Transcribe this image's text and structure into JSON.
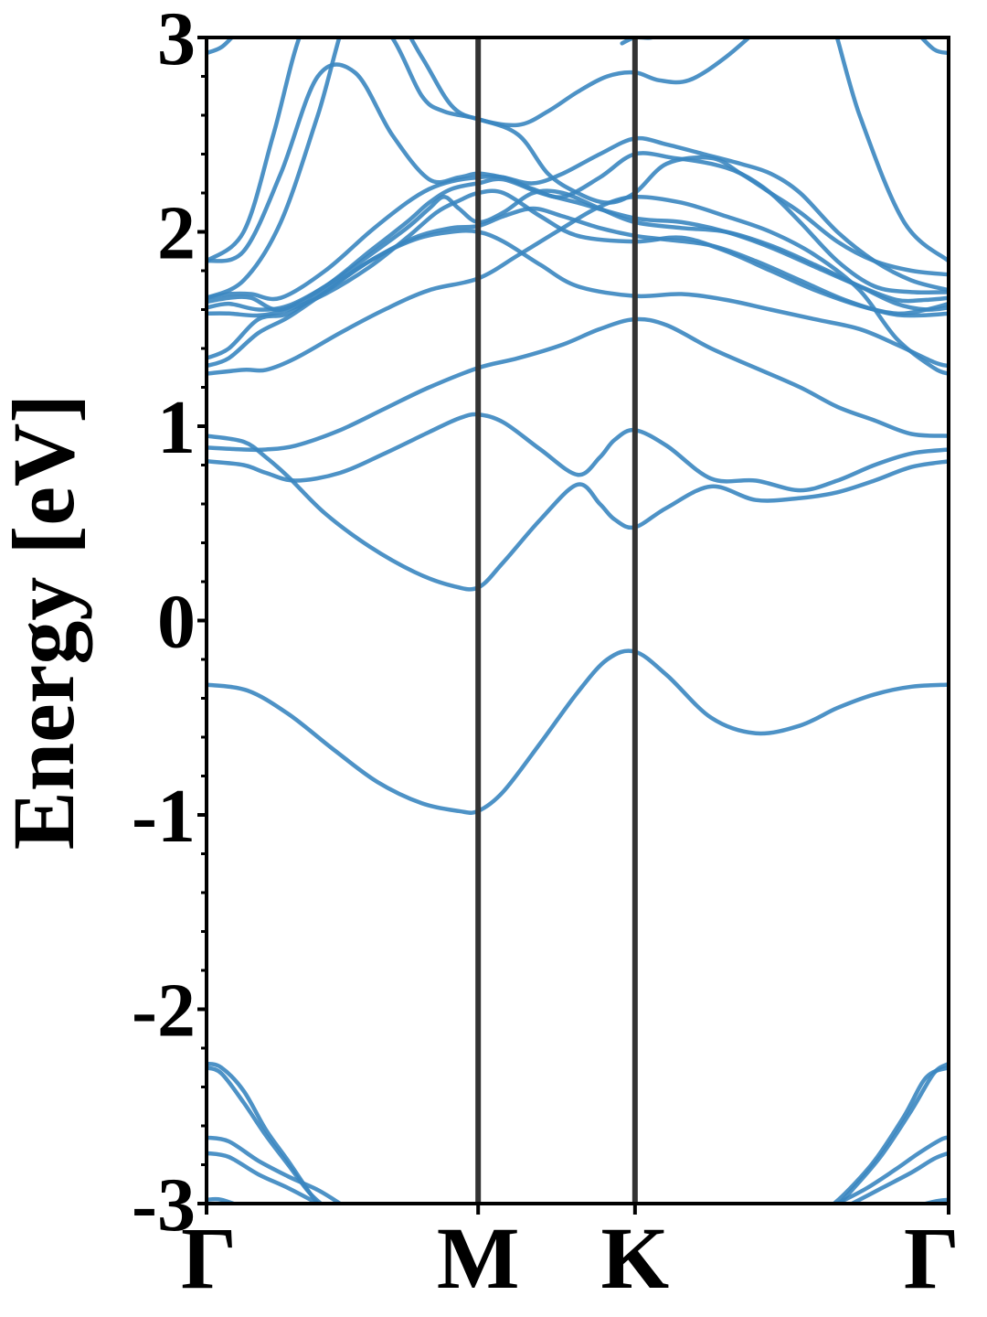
{
  "chart_data": {
    "type": "line",
    "title": "",
    "xlabel": "",
    "ylabel": "Energy [eV]",
    "ylim": [
      -3,
      3
    ],
    "y_ticks": [
      "3",
      "2",
      "1",
      "0",
      "-1",
      "-2",
      "-3"
    ],
    "y_tick_values": [
      3,
      2,
      1,
      0,
      -1,
      -2,
      -3
    ],
    "y_minor_step": 0.2,
    "k_path": [
      {
        "label": "Γ",
        "x": 0.0
      },
      {
        "label": "M",
        "x": 0.366
      },
      {
        "label": "K",
        "x": 0.5774
      },
      {
        "label": "Γ",
        "x": 1.0
      }
    ],
    "grid": false,
    "colors": {
      "band": "#3a86c0",
      "divider": "#333333",
      "axis": "#000000"
    },
    "series": [
      {
        "x": [
          0.0,
          0.055,
          0.11,
          0.17,
          0.23,
          0.29,
          0.34,
          0.366,
          0.4,
          0.45,
          0.5,
          0.54,
          0.577,
          0.62,
          0.68,
          0.74,
          0.8,
          0.85,
          0.9,
          0.95,
          1.0
        ],
        "y": [
          -0.33,
          -0.36,
          -0.48,
          -0.66,
          -0.83,
          -0.94,
          -0.98,
          -0.98,
          -0.88,
          -0.63,
          -0.37,
          -0.2,
          -0.16,
          -0.28,
          -0.5,
          -0.58,
          -0.54,
          -0.45,
          -0.38,
          -0.34,
          -0.33
        ]
      },
      {
        "x": [
          0.0,
          0.05,
          0.08,
          0.11,
          0.16,
          0.22,
          0.28,
          0.33,
          0.366,
          0.4,
          0.45,
          0.5,
          0.53,
          0.55,
          0.577,
          0.62,
          0.68,
          0.74,
          0.8,
          0.85,
          0.9,
          0.95,
          1.0
        ],
        "y": [
          0.95,
          0.92,
          0.84,
          0.74,
          0.55,
          0.38,
          0.25,
          0.18,
          0.17,
          0.3,
          0.52,
          0.7,
          0.6,
          0.52,
          0.48,
          0.58,
          0.69,
          0.62,
          0.63,
          0.66,
          0.72,
          0.79,
          0.82
        ]
      },
      {
        "x": [
          0.0,
          0.05,
          0.08,
          0.12,
          0.18,
          0.24,
          0.3,
          0.34,
          0.366,
          0.4,
          0.45,
          0.5,
          0.53,
          0.55,
          0.577,
          0.62,
          0.68,
          0.74,
          0.8,
          0.85,
          0.9,
          0.95,
          1.0
        ],
        "y": [
          0.82,
          0.8,
          0.76,
          0.72,
          0.76,
          0.86,
          0.97,
          1.04,
          1.06,
          1.02,
          0.88,
          0.75,
          0.84,
          0.93,
          0.98,
          0.9,
          0.73,
          0.72,
          0.67,
          0.72,
          0.8,
          0.86,
          0.88
        ]
      },
      {
        "x": [
          0.0,
          0.05,
          0.08,
          0.12,
          0.18,
          0.24,
          0.3,
          0.366,
          0.42,
          0.48,
          0.53,
          0.577,
          0.62,
          0.68,
          0.74,
          0.8,
          0.85,
          0.9,
          0.95,
          1.0
        ],
        "y": [
          0.89,
          0.88,
          0.88,
          0.9,
          0.98,
          1.09,
          1.2,
          1.3,
          1.35,
          1.42,
          1.5,
          1.55,
          1.52,
          1.4,
          1.3,
          1.2,
          1.1,
          1.03,
          0.96,
          0.95
        ]
      },
      {
        "x": [
          0.0,
          0.05,
          0.08,
          0.12,
          0.18,
          0.24,
          0.3,
          0.366,
          0.42,
          0.48,
          0.53,
          0.577,
          0.64,
          0.7,
          0.76,
          0.82,
          0.88,
          0.93,
          0.98,
          1.0
        ],
        "y": [
          1.27,
          1.29,
          1.29,
          1.35,
          1.48,
          1.6,
          1.7,
          1.76,
          1.88,
          2.02,
          2.13,
          2.18,
          2.15,
          2.08,
          2.0,
          1.88,
          1.7,
          1.45,
          1.3,
          1.27
        ]
      },
      {
        "x": [
          0.0,
          0.03,
          0.07,
          0.11,
          0.16,
          0.22,
          0.28,
          0.33,
          0.366,
          0.4,
          0.45,
          0.5,
          0.577,
          0.64,
          0.7,
          0.76,
          0.82,
          0.88,
          0.93,
          0.98,
          1.0
        ],
        "y": [
          1.31,
          1.35,
          1.48,
          1.56,
          1.69,
          1.85,
          1.96,
          2.0,
          2.0,
          1.95,
          1.83,
          1.72,
          1.67,
          1.68,
          1.65,
          1.6,
          1.55,
          1.5,
          1.42,
          1.33,
          1.31
        ]
      },
      {
        "x": [
          0.0,
          0.03,
          0.07,
          0.11,
          0.16,
          0.22,
          0.28,
          0.33,
          0.366,
          0.4,
          0.44,
          0.48,
          0.53,
          0.577,
          0.62,
          0.68,
          0.74,
          0.8,
          0.86,
          0.92,
          0.96,
          1.0
        ],
        "y": [
          1.35,
          1.4,
          1.55,
          1.58,
          1.7,
          1.85,
          1.97,
          2.02,
          2.03,
          2.08,
          2.12,
          2.08,
          2.02,
          1.98,
          1.96,
          1.93,
          1.85,
          1.75,
          1.65,
          1.58,
          1.57,
          1.58
        ]
      },
      {
        "x": [
          0.0,
          0.03,
          0.07,
          0.11,
          0.16,
          0.22,
          0.27,
          0.31,
          0.34,
          0.366,
          0.4,
          0.45,
          0.5,
          0.577,
          0.64,
          0.7,
          0.76,
          0.82,
          0.88,
          0.93,
          0.97,
          1.0
        ],
        "y": [
          1.58,
          1.58,
          1.57,
          1.6,
          1.68,
          1.82,
          1.97,
          2.1,
          2.16,
          2.2,
          2.2,
          2.08,
          1.98,
          1.95,
          1.97,
          1.9,
          1.8,
          1.7,
          1.62,
          1.58,
          1.6,
          1.63
        ]
      },
      {
        "x": [
          0.0,
          0.03,
          0.07,
          0.11,
          0.16,
          0.22,
          0.27,
          0.3,
          0.32,
          0.34,
          0.366,
          0.4,
          0.44,
          0.48,
          0.53,
          0.577,
          0.64,
          0.7,
          0.76,
          0.82,
          0.88,
          0.93,
          0.97,
          1.0
        ],
        "y": [
          1.61,
          1.63,
          1.6,
          1.62,
          1.72,
          1.88,
          2.02,
          2.12,
          2.18,
          2.12,
          2.05,
          2.1,
          2.2,
          2.2,
          2.12,
          2.05,
          2.02,
          2.0,
          1.93,
          1.83,
          1.72,
          1.63,
          1.6,
          1.61
        ]
      },
      {
        "x": [
          0.0,
          0.03,
          0.06,
          0.1,
          0.16,
          0.22,
          0.27,
          0.3,
          0.33,
          0.366,
          0.4,
          0.45,
          0.5,
          0.577,
          0.64,
          0.7,
          0.76,
          0.82,
          0.88,
          0.93,
          0.97,
          1.0
        ],
        "y": [
          1.64,
          1.66,
          1.66,
          1.6,
          1.72,
          1.9,
          2.05,
          2.15,
          2.22,
          2.25,
          2.27,
          2.2,
          2.15,
          2.07,
          2.05,
          2.0,
          1.92,
          1.82,
          1.72,
          1.65,
          1.65,
          1.66
        ]
      },
      {
        "x": [
          0.0,
          0.03,
          0.06,
          0.1,
          0.16,
          0.22,
          0.27,
          0.3,
          0.33,
          0.366,
          0.4,
          0.44,
          0.48,
          0.53,
          0.577,
          0.63,
          0.68,
          0.72,
          0.76,
          0.8,
          0.85,
          0.9,
          0.95,
          1.0
        ],
        "y": [
          1.66,
          1.68,
          1.68,
          1.66,
          1.8,
          2.0,
          2.15,
          2.22,
          2.26,
          2.28,
          2.28,
          2.22,
          2.18,
          2.28,
          2.4,
          2.38,
          2.35,
          2.3,
          2.2,
          2.05,
          1.85,
          1.72,
          1.69,
          1.69
        ]
      },
      {
        "x": [
          0.0,
          0.05,
          0.1,
          0.15,
          0.2,
          0.25,
          0.3,
          0.34,
          0.366,
          0.4,
          0.44,
          0.48,
          0.53,
          0.577,
          0.62,
          0.67,
          0.72,
          0.76,
          0.8,
          0.85,
          0.9,
          0.95,
          1.0
        ],
        "y": [
          1.85,
          1.9,
          2.3,
          2.8,
          2.82,
          2.5,
          2.27,
          2.28,
          2.3,
          2.28,
          2.25,
          2.3,
          2.4,
          2.48,
          2.45,
          2.4,
          2.35,
          2.3,
          2.2,
          2.0,
          1.85,
          1.75,
          1.7
        ]
      },
      {
        "x": [
          0.0,
          0.05,
          0.1,
          0.15,
          0.2,
          0.25,
          0.29,
          0.32,
          0.366,
          0.42,
          0.46,
          0.5,
          0.54,
          0.577,
          0.62,
          0.68,
          0.72,
          0.76,
          0.8,
          0.85,
          0.9,
          0.95,
          1.0
        ],
        "y": [
          1.66,
          1.75,
          2.05,
          2.6,
          3.2,
          3.0,
          2.7,
          2.62,
          2.58,
          2.5,
          2.3,
          2.2,
          2.15,
          2.2,
          2.35,
          2.38,
          2.3,
          2.2,
          2.1,
          1.95,
          1.85,
          1.8,
          1.78
        ]
      },
      {
        "x": [
          0.0,
          0.05,
          0.09,
          0.13,
          0.18,
          0.24,
          0.29,
          0.33,
          0.366,
          0.42,
          0.46,
          0.5,
          0.54,
          0.577,
          0.61,
          0.65,
          0.7,
          0.76,
          0.82,
          0.88,
          0.94,
          1.0
        ],
        "y": [
          1.85,
          2.0,
          2.5,
          3.05,
          3.3,
          3.2,
          2.9,
          2.65,
          2.58,
          2.55,
          2.62,
          2.72,
          2.8,
          2.82,
          2.78,
          2.78,
          2.9,
          3.1,
          3.3,
          2.6,
          2.05,
          1.85
        ]
      },
      {
        "x": [
          0.0,
          0.02,
          0.04,
          0.07,
          0.1
        ],
        "y": [
          2.92,
          2.95,
          3.02,
          3.1,
          3.2
        ]
      },
      {
        "x": [
          0.56,
          0.577,
          0.6,
          0.62
        ],
        "y": [
          2.97,
          3.0,
          3.0,
          3.04
        ]
      },
      {
        "x": [
          0.9,
          0.95,
          0.98,
          1.0
        ],
        "y": [
          3.2,
          3.05,
          2.94,
          2.92
        ]
      },
      {
        "x": [
          0.0,
          0.02,
          0.05,
          0.08,
          0.11,
          0.14,
          0.17
        ],
        "y": [
          -2.3,
          -2.33,
          -2.48,
          -2.65,
          -2.8,
          -2.95,
          -3.05
        ]
      },
      {
        "x": [
          0.0,
          0.02,
          0.05,
          0.08,
          0.11,
          0.14,
          0.16
        ],
        "y": [
          -2.28,
          -2.3,
          -2.42,
          -2.62,
          -2.78,
          -2.95,
          -3.05
        ]
      },
      {
        "x": [
          0.0,
          0.03,
          0.07,
          0.11,
          0.15,
          0.18
        ],
        "y": [
          -2.66,
          -2.68,
          -2.78,
          -2.86,
          -2.93,
          -3.0
        ]
      },
      {
        "x": [
          0.0,
          0.03,
          0.07,
          0.11,
          0.15
        ],
        "y": [
          -2.74,
          -2.76,
          -2.85,
          -2.92,
          -3.0
        ]
      },
      {
        "x": [
          0.0,
          0.02,
          0.05
        ],
        "y": [
          -2.98,
          -2.98,
          -3.02
        ]
      },
      {
        "x": [
          0.83,
          0.86,
          0.9,
          0.94,
          0.97,
          1.0
        ],
        "y": [
          -3.05,
          -2.95,
          -2.78,
          -2.55,
          -2.35,
          -2.3
        ]
      },
      {
        "x": [
          0.84,
          0.87,
          0.91,
          0.95,
          0.98,
          1.0
        ],
        "y": [
          -3.05,
          -2.93,
          -2.75,
          -2.52,
          -2.33,
          -2.28
        ]
      },
      {
        "x": [
          0.85,
          0.89,
          0.93,
          0.96,
          0.99,
          1.0
        ],
        "y": [
          -3.0,
          -2.92,
          -2.82,
          -2.74,
          -2.67,
          -2.66
        ]
      },
      {
        "x": [
          0.87,
          0.91,
          0.95,
          0.98,
          1.0
        ],
        "y": [
          -3.0,
          -2.92,
          -2.84,
          -2.77,
          -2.74
        ]
      },
      {
        "x": [
          0.95,
          0.98,
          1.0
        ],
        "y": [
          -3.02,
          -2.99,
          -2.98
        ]
      }
    ]
  }
}
